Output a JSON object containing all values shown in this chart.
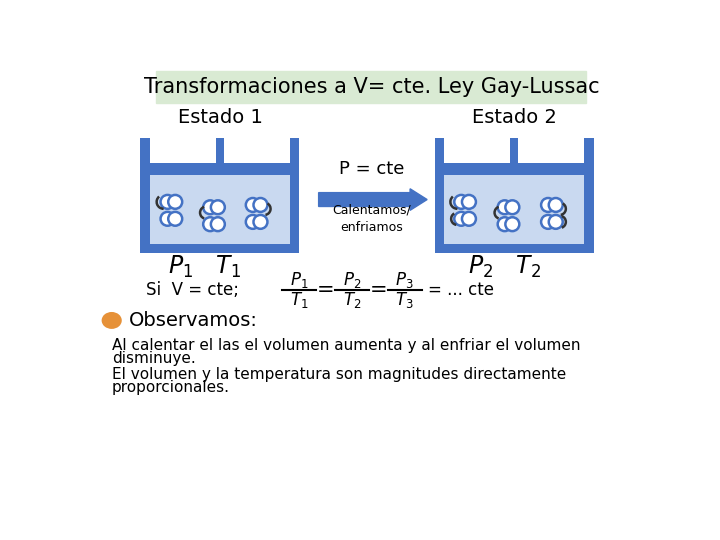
{
  "title": "Transformaciones a V= cte. Ley Gay-Lussac",
  "title_bg": "#d9ead3",
  "estado1_label": "Estado 1",
  "estado2_label": "Estado 2",
  "pcte_label": "P = cte",
  "calentamos": "Calentamos/\nenfriamos",
  "p1t1_label": "P₁   T₁",
  "p2t2_label": "P₂   T₂",
  "si_vcte_label": "Si  V = cte;",
  "observamos_label": "Observamos:",
  "obs_text1": "Al calentar el las el volumen aumenta y al enfriar el volumen\ndisminuye.",
  "obs_text2": "El volumen y la temperatura son magnitudes directamente\nproporcionales.",
  "container_fill": "#c9d9f0",
  "container_border": "#4472c4",
  "piston_fill": "#4472c4",
  "arrow_fill": "#4472c4",
  "orange_circle": "#e69138",
  "bg_color": "#ffffff",
  "molecule_color": "#ffffff",
  "molecule_border": "#4472c4"
}
